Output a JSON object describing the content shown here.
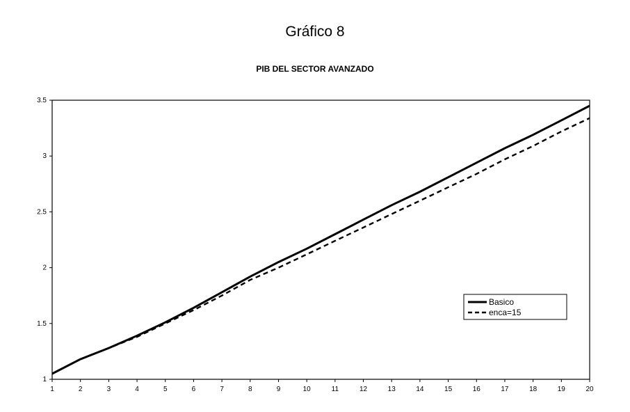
{
  "chart_data": {
    "type": "line",
    "title": "Gráfico 8",
    "subtitle": "PIB DEL SECTOR AVANZADO",
    "xlabel": "",
    "ylabel": "",
    "x": [
      1,
      2,
      3,
      4,
      5,
      6,
      7,
      8,
      9,
      10,
      11,
      12,
      13,
      14,
      15,
      16,
      17,
      18,
      19,
      20
    ],
    "xlim": [
      1,
      20
    ],
    "ylim": [
      1,
      3.5
    ],
    "x_ticks": [
      "1",
      "2",
      "3",
      "4",
      "5",
      "6",
      "7",
      "8",
      "9",
      "10",
      "11",
      "12",
      "13",
      "14",
      "15",
      "16",
      "17",
      "18",
      "19",
      "20"
    ],
    "y_ticks": [
      "1",
      "1.5",
      "2",
      "2.5",
      "3",
      "3.5"
    ],
    "y_tick_values": [
      1,
      1.5,
      2,
      2.5,
      3,
      3.5
    ],
    "grid": false,
    "legend_position": "right",
    "series": [
      {
        "name": "Basico",
        "style": "solid",
        "color": "#000000",
        "values": [
          1.05,
          1.18,
          1.28,
          1.39,
          1.51,
          1.64,
          1.78,
          1.92,
          2.05,
          2.17,
          2.3,
          2.43,
          2.56,
          2.68,
          2.81,
          2.94,
          3.07,
          3.19,
          3.32,
          3.45
        ]
      },
      {
        "name": "enca=15",
        "style": "dashed",
        "color": "#000000",
        "values": [
          1.05,
          1.18,
          1.28,
          1.38,
          1.5,
          1.62,
          1.75,
          1.89,
          2.0,
          2.12,
          2.24,
          2.36,
          2.48,
          2.6,
          2.72,
          2.84,
          2.97,
          3.09,
          3.22,
          3.34
        ]
      }
    ]
  }
}
